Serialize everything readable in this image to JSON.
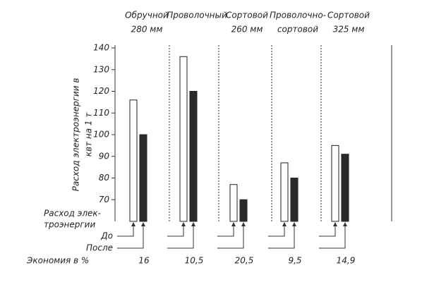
{
  "chart_data": {
    "type": "bar",
    "categories": [
      [
        "Обручной",
        "280 мм"
      ],
      [
        "Проволочный"
      ],
      [
        "Сортовой",
        "260 мм"
      ],
      [
        "Проволочно-",
        "сортовой"
      ],
      [
        "Сортовой",
        "325 мм"
      ]
    ],
    "y_label": [
      "Расход электроэнергии в",
      "квт на 1 т"
    ],
    "row_label": [
      "Расход элек-",
      "троэнергии"
    ],
    "series": [
      {
        "name": "До",
        "color": "#ffffff",
        "values": [
          116,
          136,
          77,
          87,
          95
        ]
      },
      {
        "name": "После",
        "color": "#2a2a2a",
        "values": [
          100,
          120,
          70,
          80,
          91
        ]
      }
    ],
    "economy": {
      "label": "Экономия в %",
      "values": [
        16,
        10.5,
        20.5,
        9.5,
        14.9
      ],
      "value_labels": [
        "16",
        "10,5",
        "20,5",
        "9,5",
        "14,9"
      ]
    },
    "ylim": [
      60,
      140
    ],
    "yticks": [
      70,
      80,
      90,
      100,
      110,
      120,
      130,
      140
    ]
  }
}
